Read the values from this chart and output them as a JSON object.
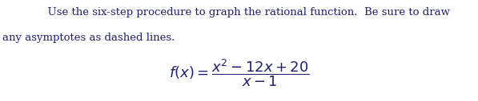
{
  "line1": "      Use the six-step procedure to graph the rational function.  Be sure to draw",
  "line2": "any asymptotes as dashed lines.",
  "formula": "$f(x) = \\dfrac{x^2 - 12x+20}{x-1}$",
  "text_color": "#231f6e",
  "bg_color": "#ffffff",
  "fontsize_text": 9.5,
  "fontsize_formula": 13,
  "fig_width": 5.97,
  "fig_height": 1.27,
  "dpi": 100
}
